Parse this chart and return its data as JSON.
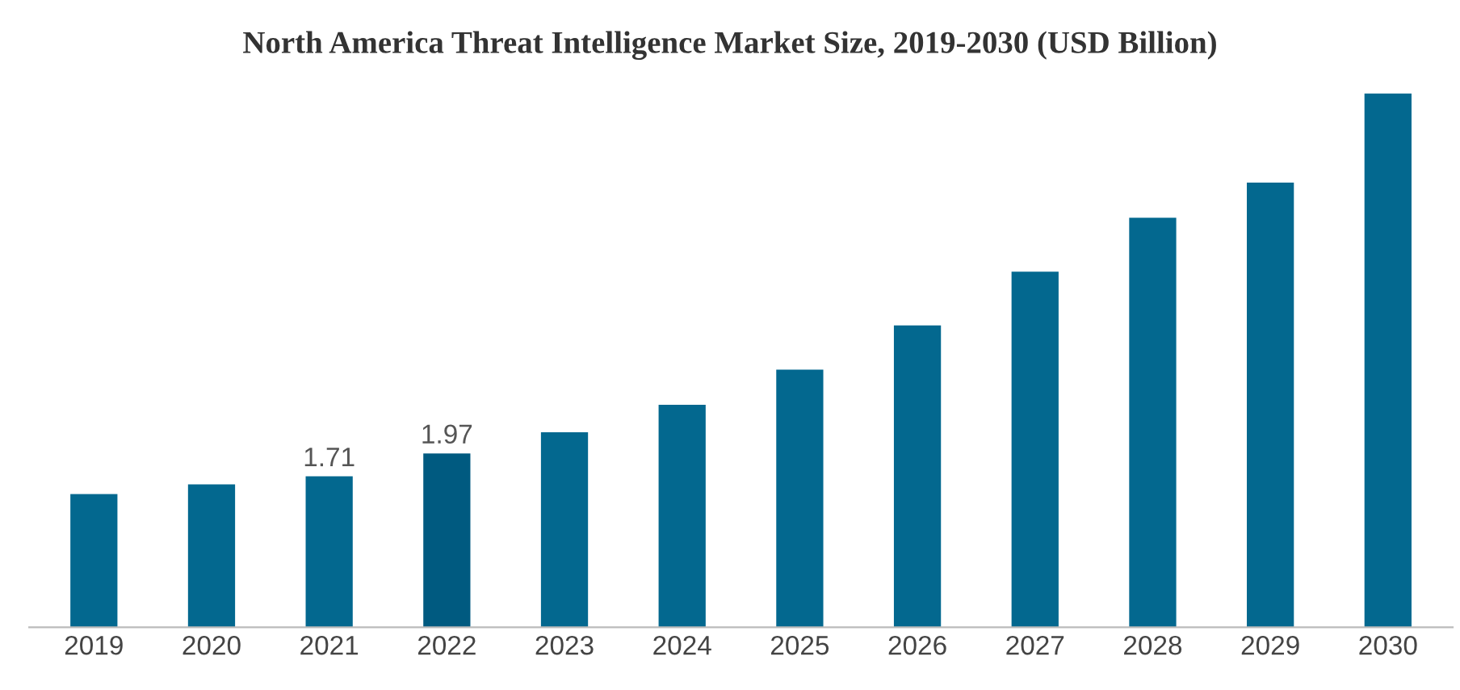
{
  "chart_data": {
    "type": "bar",
    "title": "North America Threat Intelligence Market Size, 2019-2030 (USD Billion)",
    "categories": [
      "2019",
      "2020",
      "2021",
      "2022",
      "2023",
      "2024",
      "2025",
      "2026",
      "2027",
      "2028",
      "2029",
      "2030"
    ],
    "values": [
      1.51,
      1.62,
      1.71,
      1.97,
      2.21,
      2.52,
      2.92,
      3.42,
      4.03,
      4.64,
      5.04,
      6.05
    ],
    "value_labels": [
      null,
      null,
      "1.71",
      "1.97",
      null,
      null,
      null,
      null,
      null,
      null,
      null,
      null
    ],
    "colors": [
      "#03688f",
      "#03688f",
      "#03688f",
      "#005a80",
      "#03688f",
      "#03688f",
      "#03688f",
      "#03688f",
      "#03688f",
      "#03688f",
      "#03688f",
      "#03688f"
    ],
    "ylim": [
      0,
      6.1
    ],
    "tick_labels": "x",
    "grid": false,
    "legend": false
  }
}
